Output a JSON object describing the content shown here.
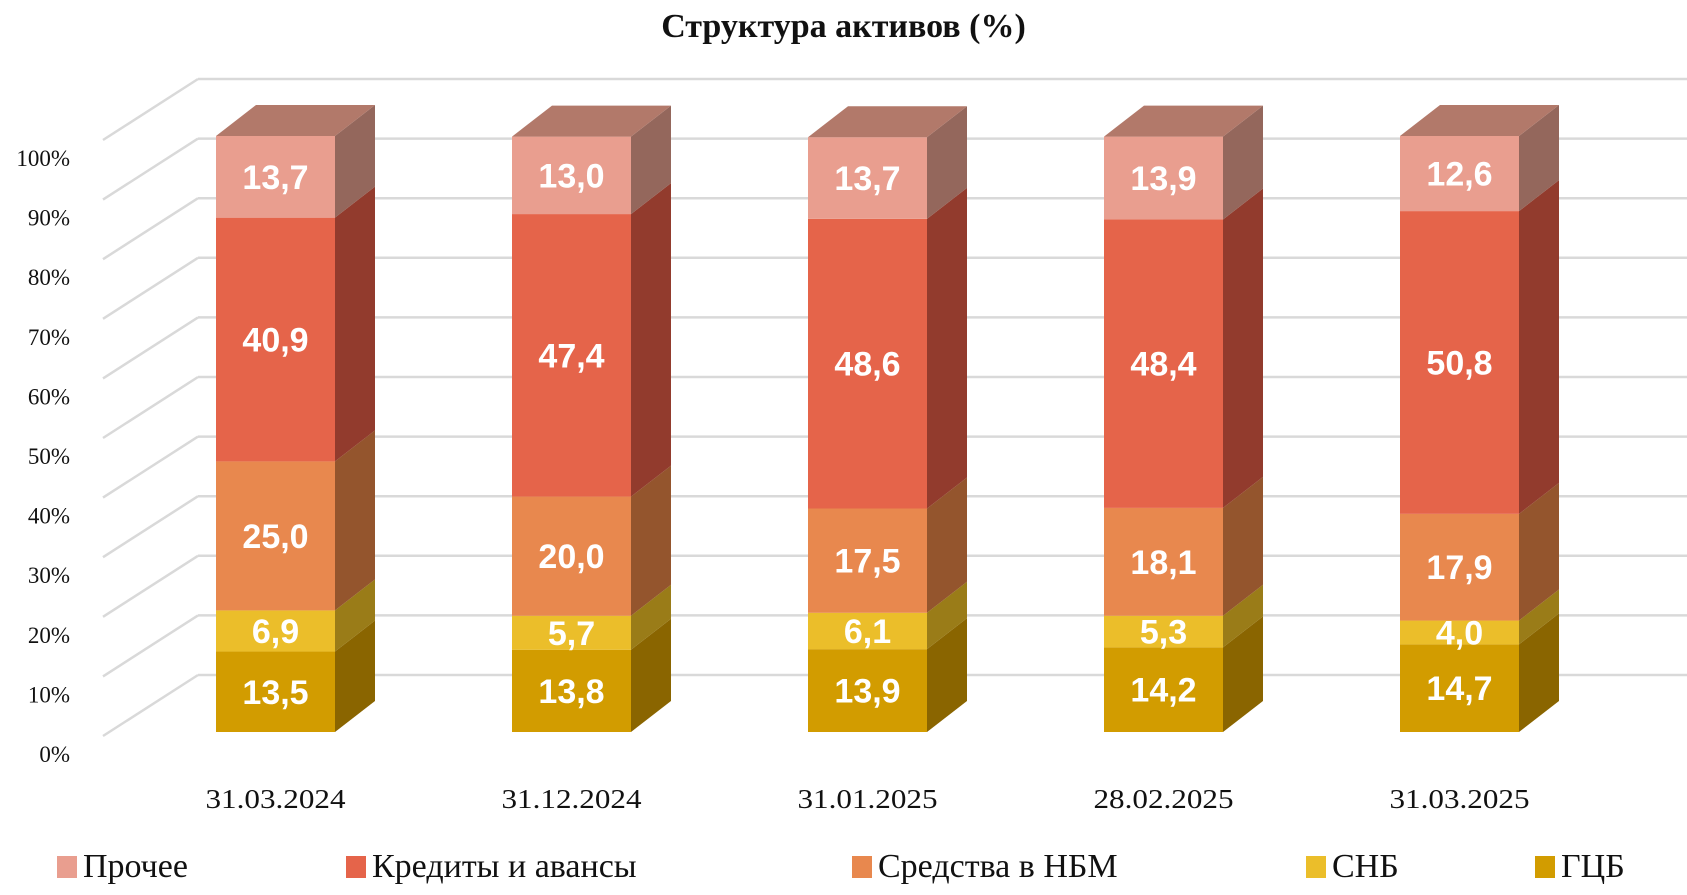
{
  "chart_data": {
    "type": "bar",
    "stacked": true,
    "three_d": true,
    "title": "Структура активов (%)",
    "xlabel": "",
    "ylabel": "",
    "ylim": [
      0,
      100
    ],
    "y_ticks": [
      "0%",
      "10%",
      "20%",
      "30%",
      "40%",
      "50%",
      "60%",
      "70%",
      "80%",
      "90%",
      "100%"
    ],
    "grid": true,
    "legend_position": "bottom",
    "categories": [
      "31.03.2024",
      "31.12.2024",
      "31.01.2025",
      "28.02.2025",
      "31.03.2025"
    ],
    "series": [
      {
        "name": "ГЦБ",
        "color": "#D29C00",
        "side": "#8A6500",
        "values": [
          13.5,
          13.8,
          13.9,
          14.2,
          14.7
        ],
        "labels": [
          "13,5",
          "13,8",
          "13,9",
          "14,2",
          "14,7"
        ]
      },
      {
        "name": "СНБ",
        "color": "#EBBE2A",
        "side": "#9A7C18",
        "values": [
          6.9,
          5.7,
          6.1,
          5.3,
          4.0
        ],
        "labels": [
          "6,9",
          "5,7",
          "6,1",
          "5,3",
          "4,0"
        ]
      },
      {
        "name": "Средства в НБМ",
        "color": "#E8884E",
        "side": "#94552D",
        "values": [
          25.0,
          20.0,
          17.5,
          18.1,
          17.9
        ],
        "labels": [
          "25,0",
          "20,0",
          "17,5",
          "18,1",
          "17,9"
        ]
      },
      {
        "name": "Кредиты и авансы",
        "color": "#E5644A",
        "side": "#923B2D",
        "values": [
          40.9,
          47.4,
          48.6,
          48.4,
          50.8
        ],
        "labels": [
          "40,9",
          "47,4",
          "48,6",
          "48,4",
          "50,8"
        ]
      },
      {
        "name": "Прочее",
        "color": "#E99E8F",
        "side": "#94675C",
        "top": "#B2796A",
        "values": [
          13.7,
          13.0,
          13.7,
          13.9,
          12.6
        ],
        "labels": [
          "13,7",
          "13,0",
          "13,7",
          "13,9",
          "12,6"
        ]
      }
    ],
    "legend_order": [
      "Прочее",
      "Кредиты и авансы",
      "Средства в НБМ",
      "СНБ",
      "ГЦБ"
    ]
  }
}
